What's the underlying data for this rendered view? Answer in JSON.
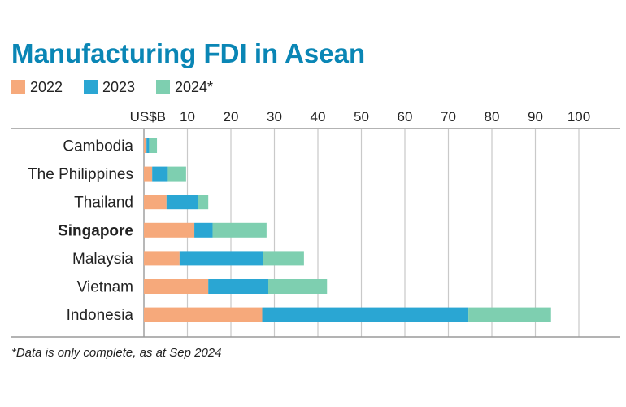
{
  "chart_data": {
    "type": "bar",
    "orientation": "horizontal",
    "stacked": true,
    "title": "Manufacturing FDI in Asean",
    "unit_label": "US$B",
    "footnote": "*Data is only complete, as at Sep 2024",
    "xlim": [
      0,
      100
    ],
    "ticks": [
      10,
      20,
      30,
      40,
      50,
      60,
      70,
      80,
      90,
      100
    ],
    "grid": true,
    "legend_position": "top-left",
    "categories": [
      "Cambodia",
      "The Philippines",
      "Thailand",
      "Singapore",
      "Malaysia",
      "Vietnam",
      "Indonesia"
    ],
    "highlight_category": "Singapore",
    "series": [
      {
        "name": "2022",
        "color": "#f6a97b",
        "values": [
          0.6,
          1.9,
          5.2,
          11.6,
          8.2,
          14.8,
          27.2
        ]
      },
      {
        "name": "2023",
        "color": "#2aa6d3",
        "values": [
          0.6,
          3.6,
          7.3,
          4.2,
          19.1,
          13.8,
          47.4
        ]
      },
      {
        "name": "2024*",
        "color": "#7ecfb0",
        "values": [
          1.8,
          4.2,
          2.3,
          12.4,
          9.5,
          13.5,
          19.0
        ]
      }
    ]
  },
  "colors": {
    "title": "#0a86b5",
    "text": "#222222",
    "grid": "#c9c9c9",
    "axis": "#9a9a9a"
  }
}
